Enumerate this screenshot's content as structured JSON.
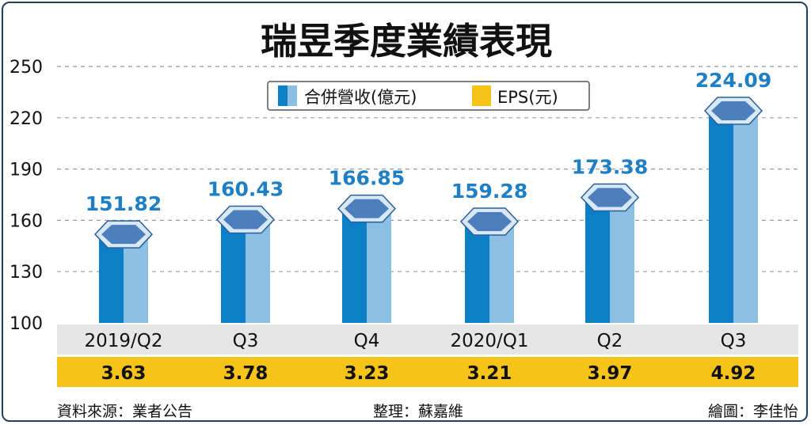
{
  "chart_data": {
    "type": "bar",
    "title": "瑞昱季度業績表現",
    "categories": [
      "2019/Q2",
      "Q3",
      "Q4",
      "2020/Q1",
      "Q2",
      "Q3"
    ],
    "series": [
      {
        "name": "合併營收(億元)",
        "values": [
          151.82,
          160.43,
          166.85,
          159.28,
          173.38,
          224.09
        ]
      },
      {
        "name": "EPS(元)",
        "values": [
          3.63,
          3.78,
          3.23,
          3.21,
          3.97,
          4.92
        ]
      }
    ],
    "value_labels": [
      "151.82",
      "160.43",
      "166.85",
      "159.28",
      "173.38",
      "224.09"
    ],
    "eps_labels": [
      "3.63",
      "3.78",
      "3.23",
      "3.21",
      "3.97",
      "4.92"
    ],
    "ylim": [
      100,
      250
    ],
    "yticks": [
      "100",
      "130",
      "160",
      "190",
      "220",
      "250"
    ],
    "legend_position": "top-center",
    "grid": true
  },
  "footer": {
    "source": "資料來源：業者公告",
    "editor": "整理：蘇嘉維",
    "artist": "繪圖：李佳怡"
  },
  "colors": {
    "bar_dark": "#0d7fc7",
    "bar_light": "#8bbfe3",
    "cap_fill": "#4e7fbd",
    "cap_rim": "#d9e8f5",
    "value_text": "#1f7fc4",
    "eps_band": "#f6c318",
    "category_band": "#e6e6e6",
    "border": "#1f3f66"
  }
}
